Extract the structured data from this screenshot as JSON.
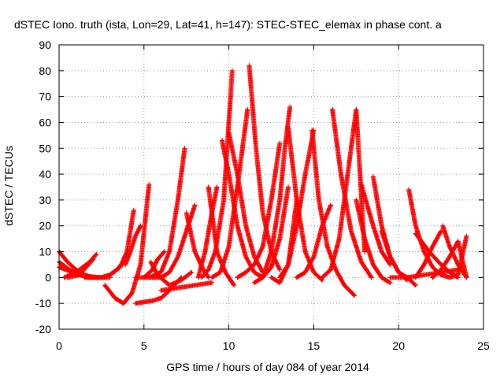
{
  "chart_data": {
    "type": "scatter",
    "title": "dSTEC Iono. truth (ista, Lon=29, Lat=41, h=147): STEC-STEC_elemax in phase cont. a",
    "xlabel": "GPS time / hours of day 084 of year 2014",
    "ylabel": "dSTEC  / TECUs",
    "xlim": [
      0,
      25
    ],
    "ylim": [
      -20,
      90
    ],
    "xticks": [
      0,
      5,
      10,
      15,
      20,
      25
    ],
    "yticks": [
      -20,
      -10,
      0,
      10,
      20,
      30,
      40,
      50,
      60,
      70,
      80,
      90
    ],
    "grid": true,
    "marker": "+",
    "color": "#ff0000",
    "series": [
      {
        "x": [
          0.0,
          0.5,
          1.0,
          1.5,
          2.0,
          2.4
        ],
        "y": [
          10,
          6,
          3,
          1,
          0,
          0
        ]
      },
      {
        "x": [
          0.0,
          0.6,
          1.2,
          1.8,
          2.3
        ],
        "y": [
          6,
          3,
          1,
          0,
          0
        ]
      },
      {
        "x": [
          0.0,
          0.8,
          1.6,
          2.4,
          3.0
        ],
        "y": [
          4,
          2,
          0.5,
          0,
          0
        ]
      },
      {
        "x": [
          0.3,
          1.0,
          1.8,
          2.2
        ],
        "y": [
          0,
          2,
          6,
          9
        ]
      },
      {
        "x": [
          0.5,
          1.2,
          1.6,
          2.0
        ],
        "y": [
          0,
          1,
          4,
          7
        ]
      },
      {
        "x": [
          1.5,
          2.5,
          3.0,
          3.6,
          4.0,
          4.4
        ],
        "y": [
          0,
          0,
          1,
          4,
          10,
          26
        ]
      },
      {
        "x": [
          2.5,
          3.0,
          3.4,
          3.8
        ],
        "y": [
          0,
          1,
          3,
          6
        ]
      },
      {
        "x": [
          2.7,
          3.3,
          3.8,
          4.3,
          4.8,
          5.3
        ],
        "y": [
          -3,
          -8,
          -10,
          -6,
          5,
          36
        ]
      },
      {
        "x": [
          3.9,
          4.2,
          4.5,
          4.8
        ],
        "y": [
          5,
          10,
          16,
          20
        ]
      },
      {
        "x": [
          4.5,
          5.0,
          5.5,
          6.0,
          6.5,
          7.2
        ],
        "y": [
          -10,
          -9.5,
          -9,
          -8,
          -5,
          0
        ]
      },
      {
        "x": [
          4.5,
          5.5,
          6.0,
          6.5,
          7.0,
          7.5,
          8.0
        ],
        "y": [
          0,
          0,
          0,
          2,
          8,
          18,
          28
        ]
      },
      {
        "x": [
          5.0,
          5.5,
          5.8,
          6.2
        ],
        "y": [
          0,
          3,
          7,
          10
        ]
      },
      {
        "x": [
          5.3,
          6.0,
          6.5,
          7.0,
          7.4
        ],
        "y": [
          0,
          2,
          10,
          30,
          50
        ]
      },
      {
        "x": [
          5.4,
          5.8,
          6.5,
          7.2,
          7.8
        ],
        "y": [
          6,
          1,
          -3,
          -1,
          2
        ]
      },
      {
        "x": [
          6.0,
          7.0,
          8.0,
          9.0
        ],
        "y": [
          -5,
          -4,
          -3,
          -2
        ]
      },
      {
        "x": [
          7.5,
          8.0,
          8.5,
          8.8
        ],
        "y": [
          25,
          10,
          3,
          0
        ]
      },
      {
        "x": [
          8.4,
          8.8,
          9.2,
          9.7,
          10.2
        ],
        "y": [
          0,
          3,
          10,
          30,
          80
        ]
      },
      {
        "x": [
          8.8,
          9.3,
          9.8,
          10.3
        ],
        "y": [
          35,
          10,
          2,
          -3
        ]
      },
      {
        "x": [
          8.2,
          8.6,
          9.0,
          9.3
        ],
        "y": [
          0,
          10,
          25,
          35
        ]
      },
      {
        "x": [
          9.0,
          9.5,
          10.0,
          10.5,
          11.1
        ],
        "y": [
          0,
          2,
          12,
          35,
          65
        ]
      },
      {
        "x": [
          9.6,
          10.0,
          10.5,
          11.0,
          11.5,
          12.0
        ],
        "y": [
          53,
          40,
          20,
          8,
          2,
          0
        ]
      },
      {
        "x": [
          10.0,
          10.5,
          11.0,
          11.5,
          12.0
        ],
        "y": [
          56,
          40,
          20,
          8,
          2
        ]
      },
      {
        "x": [
          11.2,
          11.6,
          12.0,
          12.5,
          13.0
        ],
        "y": [
          82,
          50,
          25,
          10,
          3
        ]
      },
      {
        "x": [
          10.5,
          11.0,
          11.5,
          12.0,
          12.5,
          13.0
        ],
        "y": [
          0,
          2,
          5,
          12,
          30,
          52
        ]
      },
      {
        "x": [
          11.5,
          12.0,
          12.5,
          13.0,
          13.5
        ],
        "y": [
          -2,
          0,
          4,
          15,
          35
        ]
      },
      {
        "x": [
          12.0,
          12.5,
          13.0,
          13.3,
          13.6
        ],
        "y": [
          0,
          10,
          30,
          50,
          66
        ]
      },
      {
        "x": [
          12.5,
          13.0,
          13.5,
          14.0
        ],
        "y": [
          0,
          -2,
          5,
          30
        ]
      },
      {
        "x": [
          13.5,
          14.0,
          14.5,
          15.0,
          15.5
        ],
        "y": [
          58,
          30,
          10,
          2,
          -1
        ]
      },
      {
        "x": [
          13.0,
          13.5,
          14.0,
          14.5,
          15.0
        ],
        "y": [
          0,
          5,
          20,
          40,
          57
        ]
      },
      {
        "x": [
          14.9,
          15.3,
          15.8,
          16.3,
          16.8,
          17.4
        ],
        "y": [
          57,
          30,
          12,
          3,
          -3,
          -7
        ]
      },
      {
        "x": [
          14.0,
          14.5,
          15.0,
          15.5,
          16.0
        ],
        "y": [
          0,
          2,
          8,
          20,
          28
        ]
      },
      {
        "x": [
          15.5,
          16.0,
          16.5,
          17.0,
          17.5,
          18.0
        ],
        "y": [
          0,
          3,
          15,
          40,
          65,
          10
        ]
      },
      {
        "x": [
          16.1,
          16.6,
          17.2,
          17.8,
          18.4
        ],
        "y": [
          65,
          40,
          18,
          6,
          0
        ]
      },
      {
        "x": [
          17.5,
          18.0,
          18.5,
          19.0,
          19.5
        ],
        "y": [
          30,
          15,
          5,
          0,
          -2
        ]
      },
      {
        "x": [
          18.5,
          19.0,
          19.5,
          20.0,
          20.5
        ],
        "y": [
          39,
          20,
          8,
          2,
          -1
        ]
      },
      {
        "x": [
          17.8,
          18.5,
          19.0,
          19.5
        ],
        "y": [
          36,
          20,
          10,
          5
        ]
      },
      {
        "x": [
          19.0,
          19.5,
          20.0,
          20.5,
          21.0
        ],
        "y": [
          18,
          8,
          2,
          0,
          -3
        ]
      },
      {
        "x": [
          20.6,
          21.0,
          21.5,
          22.0,
          22.5,
          23.0,
          23.5,
          24.0
        ],
        "y": [
          34,
          20,
          10,
          4,
          1,
          0,
          1,
          16
        ]
      },
      {
        "x": [
          21.0,
          21.5,
          22.0,
          22.5
        ],
        "y": [
          0,
          5,
          12,
          18
        ]
      },
      {
        "x": [
          21.0,
          21.8,
          22.5,
          23.0,
          23.5
        ],
        "y": [
          17,
          10,
          5,
          2,
          0
        ]
      },
      {
        "x": [
          22.0,
          22.5,
          23.0,
          23.5,
          24.0
        ],
        "y": [
          0,
          3,
          8,
          14,
          0
        ]
      },
      {
        "x": [
          22.6,
          23.0,
          23.5,
          24.0
        ],
        "y": [
          20,
          12,
          5,
          0
        ]
      },
      {
        "x": [
          19.5,
          20.5,
          21.5,
          22.5,
          23.5
        ],
        "y": [
          0,
          0,
          1,
          2,
          3
        ]
      }
    ]
  }
}
